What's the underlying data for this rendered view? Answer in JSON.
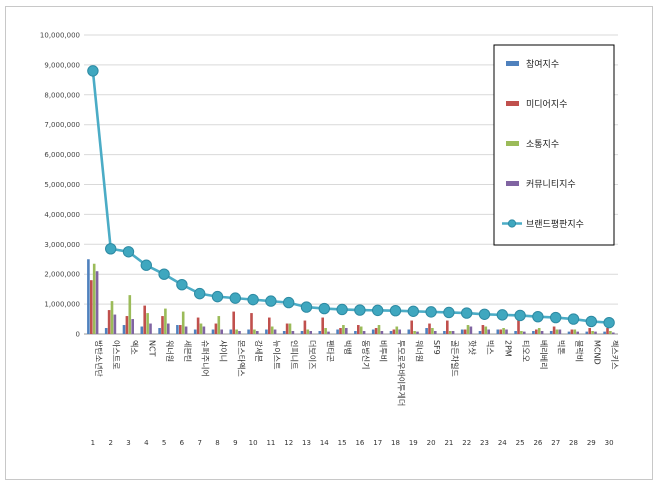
{
  "chart_data": {
    "type": "bar",
    "combo_line_series": "브랜드평판지수",
    "ylim": [
      0,
      10000000
    ],
    "yticks": [
      "0",
      "1,000,000",
      "2,000,000",
      "3,000,000",
      "4,000,000",
      "5,000,000",
      "6,000,000",
      "7,000,000",
      "8,000,000",
      "9,000,000",
      "10,000,000"
    ],
    "ranks": [
      "1",
      "2",
      "3",
      "4",
      "5",
      "6",
      "7",
      "8",
      "9",
      "10",
      "11",
      "12",
      "13",
      "14",
      "15",
      "16",
      "17",
      "18",
      "19",
      "20",
      "21",
      "22",
      "23",
      "24",
      "25",
      "26",
      "27",
      "28",
      "29",
      "30"
    ],
    "categories": [
      "방탄소년단",
      "아스트로",
      "엑소",
      "NCT",
      "워너원",
      "세븐틴",
      "슈퍼주니어",
      "샤이니",
      "몬스타엑스",
      "강세븐",
      "뉴이스트",
      "인피니트",
      "더보이즈",
      "펜타곤",
      "빅뱅",
      "동방신기",
      "비투비",
      "투모로우바이투게더",
      "워너원",
      "SF9",
      "골든차일드",
      "핫샷",
      "빅스",
      "2PM",
      "티오오",
      "베리베리",
      "빅톤",
      "블락비",
      "MCND",
      "젝스키스"
    ],
    "legend": {
      "position": "right"
    },
    "series": [
      {
        "name": "참여지수",
        "color": "#4f81bd",
        "values": [
          2500000,
          200000,
          300000,
          250000,
          200000,
          300000,
          150000,
          150000,
          150000,
          150000,
          150000,
          100000,
          100000,
          100000,
          150000,
          100000,
          150000,
          100000,
          150000,
          200000,
          100000,
          150000,
          100000,
          150000,
          100000,
          100000,
          100000,
          80000,
          80000,
          80000
        ]
      },
      {
        "name": "미디어지수",
        "color": "#c0504d",
        "values": [
          1800000,
          800000,
          600000,
          950000,
          600000,
          300000,
          550000,
          350000,
          750000,
          700000,
          550000,
          350000,
          450000,
          550000,
          200000,
          300000,
          200000,
          150000,
          450000,
          350000,
          450000,
          150000,
          300000,
          150000,
          450000,
          150000,
          250000,
          150000,
          200000,
          200000
        ]
      },
      {
        "name": "소통지수",
        "color": "#9bbb59",
        "values": [
          2350000,
          1100000,
          1300000,
          700000,
          850000,
          750000,
          350000,
          600000,
          150000,
          150000,
          250000,
          350000,
          150000,
          200000,
          300000,
          250000,
          300000,
          250000,
          100000,
          200000,
          100000,
          300000,
          250000,
          200000,
          100000,
          200000,
          150000,
          150000,
          100000,
          100000
        ]
      },
      {
        "name": "커뮤니티지수",
        "color": "#8064a2",
        "values": [
          2100000,
          650000,
          500000,
          350000,
          350000,
          250000,
          250000,
          150000,
          100000,
          100000,
          150000,
          100000,
          100000,
          80000,
          200000,
          100000,
          100000,
          150000,
          80000,
          100000,
          100000,
          250000,
          150000,
          150000,
          80000,
          100000,
          150000,
          80000,
          80000,
          50000
        ]
      },
      {
        "name": "브랜드평판지수",
        "color": "#4bacc6",
        "values": [
          8800000,
          2850000,
          2750000,
          2300000,
          2000000,
          1650000,
          1350000,
          1250000,
          1200000,
          1150000,
          1100000,
          1050000,
          900000,
          850000,
          820000,
          800000,
          790000,
          780000,
          760000,
          740000,
          720000,
          700000,
          660000,
          640000,
          620000,
          580000,
          550000,
          500000,
          420000,
          380000
        ]
      }
    ]
  }
}
